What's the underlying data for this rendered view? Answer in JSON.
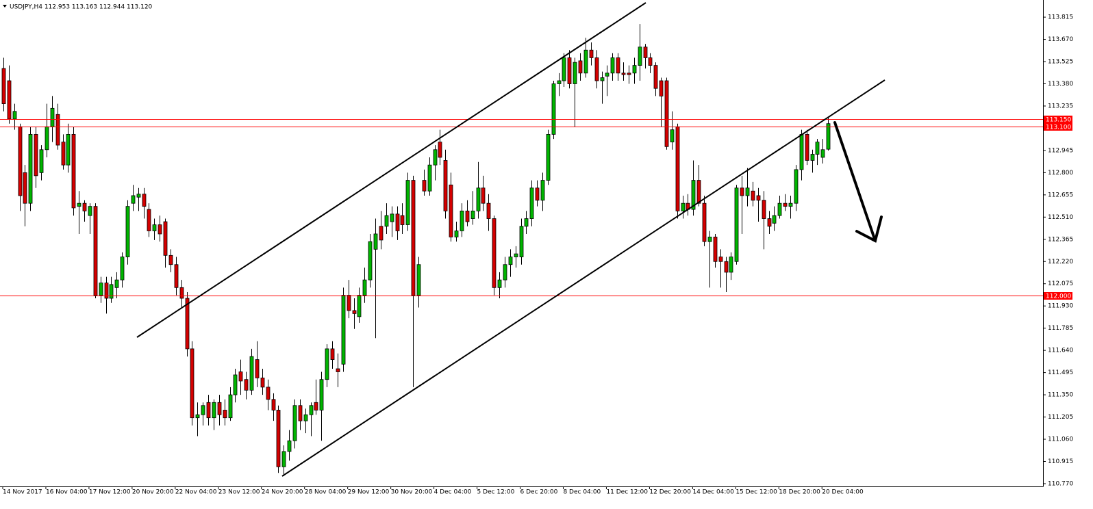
{
  "chart_data": {
    "type": "candlestick",
    "title": "USDJPY,H4  112.953 113.163 112.944 113.120",
    "x": [
      "14 Nov 2017",
      null,
      null,
      null,
      null,
      null,
      null,
      null,
      "16 Nov 04:00",
      null,
      null,
      null,
      null,
      null,
      null,
      null,
      "17 Nov 12:00",
      null,
      null,
      null,
      null,
      null,
      null,
      null,
      "20 Nov 20:00",
      null,
      null,
      null,
      null,
      null,
      null,
      null,
      "22 Nov 04:00",
      null,
      null,
      null,
      null,
      null,
      null,
      null,
      "23 Nov 12:00",
      null,
      null,
      null,
      null,
      null,
      null,
      null,
      "24 Nov 20:00",
      null,
      null,
      null,
      null,
      null,
      null,
      null,
      "28 Nov 04:00",
      null,
      null,
      null,
      null,
      null,
      null,
      null,
      "29 Nov 12:00",
      null,
      null,
      null,
      null,
      null,
      null,
      null,
      "30 Nov 20:00",
      null,
      null,
      null,
      null,
      null,
      null,
      null,
      "4 Dec 04:00",
      null,
      null,
      null,
      null,
      null,
      null,
      null,
      "5 Dec 12:00",
      null,
      null,
      null,
      null,
      null,
      null,
      null,
      "6 Dec 20:00",
      null,
      null,
      null,
      null,
      null,
      null,
      null,
      "8 Dec 04:00",
      null,
      null,
      null,
      null,
      null,
      null,
      null,
      "11 Dec 12:00",
      null,
      null,
      null,
      null,
      null,
      null,
      null,
      "12 Dec 20:00",
      null,
      null,
      null,
      null,
      null,
      null,
      null,
      "14 Dec 04:00",
      null,
      null,
      null,
      null,
      null,
      null,
      null,
      "15 Dec 12:00",
      null,
      null,
      null,
      null,
      null,
      null,
      null,
      "18 Dec 20:00",
      null,
      null,
      null,
      null,
      null,
      null,
      null,
      "20 Dec 04:00",
      null
    ],
    "open": [
      113.48,
      113.4,
      113.15,
      113.1,
      112.8,
      112.6,
      113.05,
      112.8,
      112.95,
      113.1,
      113.18,
      113.0,
      112.85,
      113.05,
      112.58,
      112.6,
      112.52,
      112.58,
      112.0,
      112.08,
      111.98,
      112.05,
      112.1,
      112.25,
      112.6,
      112.64,
      112.66,
      112.56,
      112.42,
      112.46,
      112.48,
      112.26,
      112.2,
      112.05,
      111.98,
      111.65,
      111.2,
      111.22,
      111.3,
      111.2,
      111.3,
      111.25,
      111.2,
      111.35,
      111.5,
      111.45,
      111.38,
      111.58,
      111.46,
      111.4,
      111.32,
      111.25,
      110.88,
      110.98,
      111.05,
      111.28,
      111.18,
      111.22,
      111.3,
      111.25,
      111.45,
      111.65,
      111.52,
      111.55,
      112.0,
      111.9,
      111.86,
      112.0,
      112.1,
      112.3,
      112.45,
      112.45,
      112.48,
      112.53,
      112.52,
      112.46,
      112.75,
      112.0,
      112.75,
      112.68,
      112.85,
      113.0,
      112.88,
      112.72,
      112.38,
      112.42,
      112.55,
      112.5,
      112.55,
      112.7,
      112.6,
      112.5,
      112.05,
      112.1,
      112.2,
      112.25,
      112.25,
      112.45,
      112.5,
      112.7,
      112.62,
      112.75,
      113.05,
      113.38,
      113.4,
      113.55,
      113.38,
      113.53,
      113.45,
      113.6,
      113.55,
      113.4,
      113.43,
      113.45,
      113.55,
      113.45,
      113.45,
      113.45,
      113.5,
      113.62,
      113.55,
      113.5,
      113.4,
      113.4,
      113.0,
      113.1,
      112.55,
      112.6,
      112.56,
      112.75,
      112.6,
      112.35,
      112.38,
      112.25,
      112.22,
      112.15,
      112.22,
      112.7,
      112.65,
      112.68,
      112.65,
      112.62,
      112.5,
      112.47,
      112.52,
      112.6,
      112.58,
      112.6,
      112.82,
      113.05,
      112.88,
      112.92,
      112.9,
      112.953
    ],
    "high": [
      113.55,
      113.5,
      113.25,
      113.12,
      112.85,
      113.1,
      113.1,
      112.98,
      113.25,
      113.3,
      113.25,
      113.05,
      113.12,
      113.1,
      112.68,
      112.62,
      112.6,
      112.6,
      112.12,
      112.12,
      112.12,
      112.15,
      112.28,
      112.62,
      112.72,
      112.7,
      112.7,
      112.6,
      112.5,
      112.52,
      112.5,
      112.3,
      112.25,
      112.1,
      112.02,
      111.7,
      111.3,
      111.3,
      111.35,
      111.32,
      111.35,
      111.32,
      111.4,
      111.52,
      111.58,
      111.5,
      111.65,
      111.7,
      111.52,
      111.45,
      111.36,
      111.28,
      111.02,
      111.12,
      111.32,
      111.32,
      111.26,
      111.3,
      111.45,
      111.5,
      111.68,
      111.7,
      111.62,
      112.05,
      112.1,
      111.98,
      112.05,
      112.18,
      112.4,
      112.5,
      112.55,
      112.6,
      112.58,
      112.58,
      112.6,
      112.8,
      112.78,
      112.25,
      112.82,
      112.9,
      112.98,
      113.08,
      112.95,
      112.8,
      112.48,
      112.6,
      112.62,
      112.68,
      112.87,
      112.78,
      112.66,
      112.52,
      112.15,
      112.25,
      112.3,
      112.32,
      112.5,
      112.55,
      112.75,
      112.75,
      112.8,
      113.08,
      113.4,
      113.45,
      113.58,
      113.6,
      113.55,
      113.58,
      113.68,
      113.65,
      113.6,
      113.46,
      113.5,
      113.58,
      113.58,
      113.52,
      113.5,
      113.55,
      113.77,
      113.64,
      113.58,
      113.52,
      113.42,
      113.42,
      113.2,
      113.12,
      112.65,
      112.66,
      112.88,
      112.85,
      112.65,
      112.42,
      112.4,
      112.3,
      112.25,
      112.28,
      112.72,
      112.78,
      112.83,
      112.74,
      112.7,
      112.68,
      112.55,
      112.58,
      112.65,
      112.66,
      112.65,
      112.85,
      113.08,
      113.08,
      112.95,
      113.02,
      113.02,
      113.163
    ],
    "low": [
      113.2,
      113.12,
      113.08,
      112.55,
      112.45,
      112.55,
      112.7,
      112.75,
      112.9,
      113.0,
      112.95,
      112.82,
      112.8,
      112.52,
      112.4,
      112.48,
      112.4,
      111.98,
      111.95,
      111.88,
      111.95,
      111.98,
      112.05,
      112.2,
      112.55,
      112.55,
      112.5,
      112.38,
      112.36,
      112.35,
      112.18,
      112.15,
      112.0,
      111.92,
      111.6,
      111.15,
      111.08,
      111.15,
      111.15,
      111.12,
      111.15,
      111.15,
      111.18,
      111.3,
      111.35,
      111.32,
      111.35,
      111.4,
      111.35,
      111.25,
      111.18,
      110.84,
      110.82,
      110.92,
      111.0,
      111.12,
      111.1,
      111.08,
      111.22,
      111.05,
      111.4,
      111.52,
      111.4,
      111.5,
      111.85,
      111.78,
      111.82,
      111.95,
      112.05,
      111.72,
      112.3,
      112.4,
      112.38,
      112.36,
      112.4,
      112.42,
      111.4,
      111.92,
      112.65,
      112.65,
      112.75,
      112.85,
      112.5,
      112.35,
      112.35,
      112.38,
      112.45,
      112.46,
      112.5,
      112.55,
      112.42,
      112.0,
      111.98,
      112.05,
      112.12,
      112.18,
      112.2,
      112.4,
      112.45,
      112.58,
      112.55,
      112.72,
      113.02,
      113.3,
      113.36,
      113.35,
      113.1,
      113.4,
      113.42,
      113.5,
      113.35,
      113.25,
      113.3,
      113.4,
      113.4,
      113.4,
      113.38,
      113.38,
      113.4,
      113.48,
      113.45,
      113.3,
      113.1,
      112.95,
      112.95,
      112.5,
      112.5,
      112.52,
      112.52,
      112.58,
      112.32,
      112.05,
      112.18,
      112.05,
      112.02,
      112.1,
      112.2,
      112.4,
      112.58,
      112.58,
      112.48,
      112.3,
      112.4,
      112.42,
      112.5,
      112.55,
      112.5,
      112.55,
      112.75,
      112.85,
      112.8,
      112.85,
      112.86,
      112.944
    ],
    "close": [
      113.25,
      113.15,
      113.2,
      112.65,
      112.6,
      113.05,
      112.78,
      112.95,
      113.1,
      113.22,
      112.98,
      112.85,
      113.05,
      112.57,
      112.6,
      112.55,
      112.58,
      112.0,
      112.08,
      111.98,
      112.07,
      112.1,
      112.25,
      112.58,
      112.65,
      112.66,
      112.58,
      112.42,
      112.46,
      112.4,
      112.26,
      112.2,
      112.05,
      111.98,
      111.65,
      111.2,
      111.22,
      111.28,
      111.2,
      111.3,
      111.22,
      111.2,
      111.35,
      111.48,
      111.44,
      111.38,
      111.6,
      111.46,
      111.4,
      111.32,
      111.25,
      110.88,
      110.98,
      111.05,
      111.28,
      111.18,
      111.22,
      111.28,
      111.25,
      111.45,
      111.65,
      111.58,
      111.5,
      112.0,
      111.9,
      111.88,
      112.0,
      112.1,
      112.35,
      112.4,
      112.36,
      112.52,
      112.53,
      112.42,
      112.46,
      112.75,
      112.0,
      112.2,
      112.68,
      112.85,
      112.95,
      112.9,
      112.55,
      112.38,
      112.42,
      112.55,
      112.48,
      112.55,
      112.7,
      112.6,
      112.5,
      112.05,
      112.1,
      112.2,
      112.25,
      112.27,
      112.45,
      112.5,
      112.7,
      112.62,
      112.75,
      113.05,
      113.38,
      113.4,
      113.55,
      113.38,
      113.52,
      113.45,
      113.6,
      113.55,
      113.4,
      113.42,
      113.45,
      113.55,
      113.45,
      113.44,
      113.44,
      113.5,
      113.62,
      113.55,
      113.5,
      113.35,
      113.3,
      112.97,
      113.08,
      112.55,
      112.6,
      112.56,
      112.75,
      112.6,
      112.35,
      112.38,
      112.22,
      112.22,
      112.15,
      112.25,
      112.7,
      112.65,
      112.7,
      112.62,
      112.62,
      112.5,
      112.45,
      112.52,
      112.6,
      112.58,
      112.6,
      112.82,
      113.05,
      112.88,
      112.92,
      113.0,
      112.95,
      113.12
    ],
    "bull_color": "#00b400",
    "bear_color": "#d40000",
    "ylim": [
      110.752,
      113.927
    ],
    "yticks": [
      113.815,
      {
        "value": 113.67,
        "label": "113.670"
      },
      113.525,
      {
        "value": 113.38,
        "label": "113.380"
      },
      113.235,
      112.945,
      {
        "value": 112.8,
        "label": "112.800"
      },
      112.655,
      {
        "value": 112.51,
        "label": "112.510"
      },
      112.365,
      {
        "value": 112.22,
        "label": "112.220"
      },
      112.075,
      {
        "value": 111.93,
        "label": "111.930"
      },
      111.785,
      {
        "value": 111.64,
        "label": "111.640"
      },
      111.495,
      {
        "value": 111.35,
        "label": "111.350"
      },
      111.205,
      {
        "value": 111.06,
        "label": "111.060"
      },
      110.915,
      {
        "value": 110.77,
        "label": "110.770"
      }
    ],
    "levels": [
      {
        "value": 113.15,
        "label": "113.150"
      },
      {
        "value": 113.1,
        "label": "113.100"
      },
      {
        "value": 112,
        "label": "112.000"
      }
    ],
    "level_color": "#ff0000"
  }
}
